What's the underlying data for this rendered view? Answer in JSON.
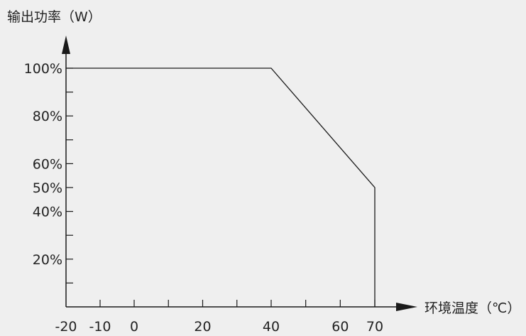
{
  "chart_data": {
    "type": "line",
    "title": "",
    "ylabel": "输出功率（W）",
    "xlabel": "环境温度（℃）",
    "x_ticks": [
      -20,
      -10,
      0,
      20,
      40,
      60,
      70
    ],
    "x_tick_labels": [
      "-20",
      "-10",
      "0",
      "20",
      "40",
      "60",
      "70"
    ],
    "x_minor_ticks": [
      -10,
      0,
      10,
      20,
      30,
      40,
      50,
      60,
      70
    ],
    "y_ticks": [
      20,
      40,
      50,
      60,
      80,
      100
    ],
    "y_tick_labels": [
      "20%",
      "40%",
      "50%",
      "60%",
      "80%",
      "100%"
    ],
    "y_minor_ticks": [
      10,
      30,
      70,
      90
    ],
    "xlim": [
      -20,
      70
    ],
    "ylim": [
      0,
      100
    ],
    "grid": false,
    "series": [
      {
        "x": [
          -20,
          40,
          70,
          70
        ],
        "y": [
          100,
          100,
          50,
          0
        ]
      }
    ],
    "colors": {
      "line": "#1a1a1a",
      "axis": "#1a1a1a",
      "background": "#efefef"
    }
  }
}
